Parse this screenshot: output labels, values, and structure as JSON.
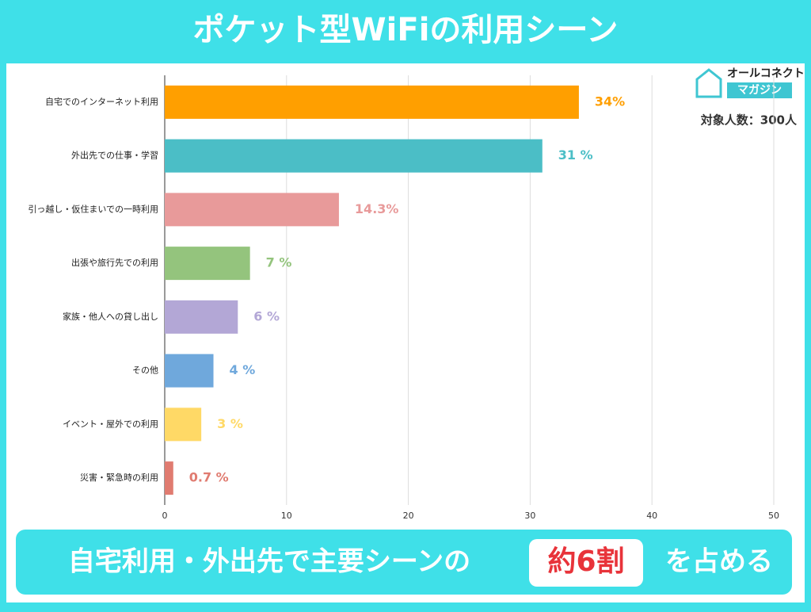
{
  "chart_data": {
    "type": "bar",
    "orientation": "horizontal",
    "title": "ポケット型WiFiの利用シーン",
    "categories": [
      "自宅でのインターネット利用",
      "外出先での仕事・学習",
      "引っ越し・仮住まいでの一時利用",
      "出張や旅行先での利用",
      "家族・他人への貸し出し",
      "その他",
      "イベント・屋外での利用",
      "災害・緊急時の利用"
    ],
    "values": [
      34,
      31,
      14.3,
      7,
      6,
      4,
      3,
      0.7
    ],
    "value_labels": [
      "34%",
      "31 %",
      "14.3%",
      "7 %",
      "6 %",
      "4 %",
      "3 %",
      "0.7 %"
    ],
    "colors": [
      "#ff9f00",
      "#4bbec6",
      "#e89a9a",
      "#94c47d",
      "#b3a7d6",
      "#6fa8dc",
      "#ffd966",
      "#e07b70"
    ],
    "xlim": [
      0,
      50
    ],
    "xticks": [
      0,
      10,
      20,
      30,
      40,
      50
    ],
    "grid": true,
    "note": "対象人数：300人",
    "logo": {
      "line1": "オールコネクト",
      "line2": "マガジン"
    },
    "banner": {
      "before": "自宅利用・外出先で主要シーンの",
      "highlight": "約6割",
      "after": "を占める"
    }
  }
}
